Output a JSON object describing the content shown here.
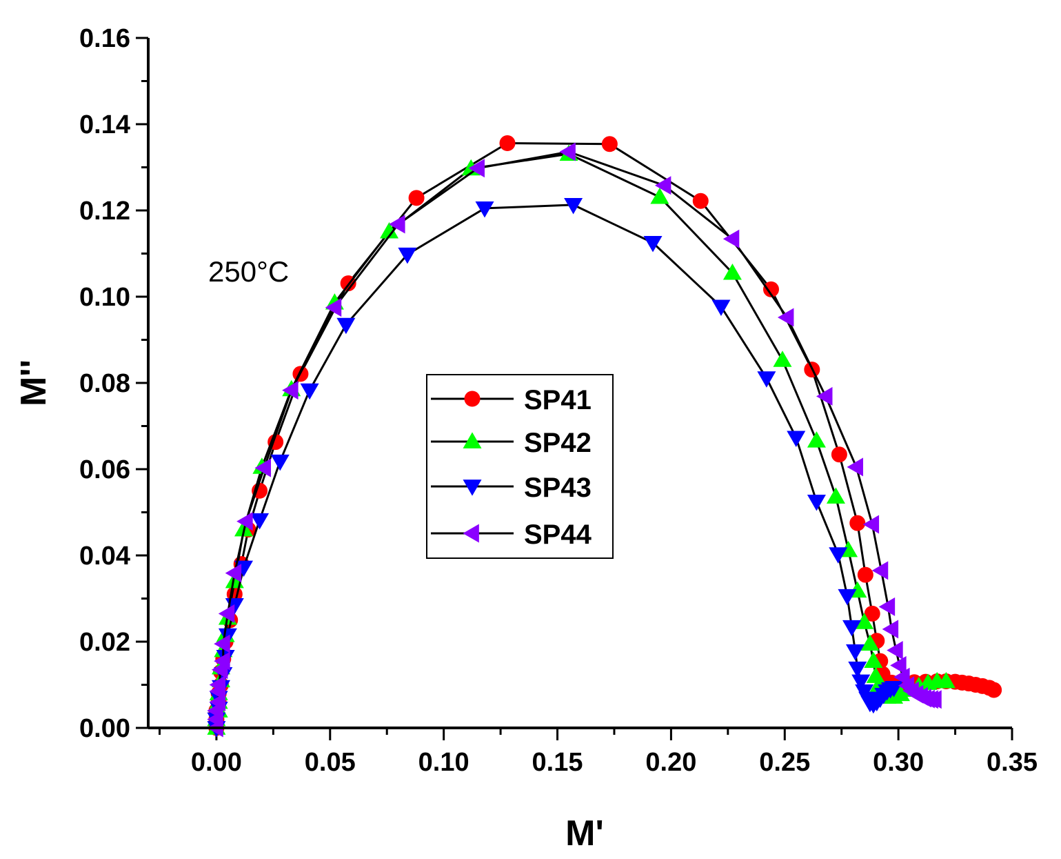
{
  "chart_data": {
    "type": "line",
    "title": "",
    "xlabel": "M'",
    "ylabel": "M''",
    "xlim": [
      -0.03,
      0.35
    ],
    "ylim": [
      0,
      0.16
    ],
    "x_ticks": [
      0.0,
      0.05,
      0.1,
      0.15,
      0.2,
      0.25,
      0.3,
      0.35
    ],
    "x_tick_labels": [
      "0.00",
      "0.05",
      "0.10",
      "0.15",
      "0.20",
      "0.25",
      "0.30",
      "0.35"
    ],
    "y_ticks": [
      0.0,
      0.02,
      0.04,
      0.06,
      0.08,
      0.1,
      0.12,
      0.14,
      0.16
    ],
    "y_tick_labels": [
      "0.00",
      "0.02",
      "0.04",
      "0.06",
      "0.08",
      "0.10",
      "0.12",
      "0.14",
      "0.16"
    ],
    "grid": false,
    "legend_position": "center-left",
    "annotations": [
      {
        "text": "250°C",
        "x": 0.012,
        "y": 0.106
      }
    ],
    "series": [
      {
        "name": "SP41",
        "color": "#ff0000",
        "marker": "circle",
        "points": [
          [
            0.0,
            0.0
          ],
          [
            0.0,
            0.002
          ],
          [
            0.0,
            0.004
          ],
          [
            0.001,
            0.006
          ],
          [
            0.001,
            0.008
          ],
          [
            0.002,
            0.01
          ],
          [
            0.002,
            0.013
          ],
          [
            0.003,
            0.016
          ],
          [
            0.004,
            0.02
          ],
          [
            0.006,
            0.025
          ],
          [
            0.008,
            0.031
          ],
          [
            0.011,
            0.038
          ],
          [
            0.014,
            0.046
          ],
          [
            0.019,
            0.055
          ],
          [
            0.026,
            0.0663
          ],
          [
            0.037,
            0.0821
          ],
          [
            0.058,
            0.1031
          ],
          [
            0.088,
            0.1229
          ],
          [
            0.128,
            0.1356
          ],
          [
            0.173,
            0.1354
          ],
          [
            0.213,
            0.1222
          ],
          [
            0.244,
            0.1017
          ],
          [
            0.262,
            0.0831
          ],
          [
            0.274,
            0.0634
          ],
          [
            0.282,
            0.0475
          ],
          [
            0.2855,
            0.0355
          ],
          [
            0.2885,
            0.0265
          ],
          [
            0.2905,
            0.0202
          ],
          [
            0.292,
            0.0155
          ],
          [
            0.293,
            0.0125
          ],
          [
            0.294,
            0.011
          ],
          [
            0.297,
            0.0105
          ],
          [
            0.302,
            0.0105
          ],
          [
            0.307,
            0.0106
          ],
          [
            0.312,
            0.0107
          ],
          [
            0.317,
            0.0108
          ],
          [
            0.321,
            0.0108
          ],
          [
            0.325,
            0.0107
          ],
          [
            0.328,
            0.0105
          ],
          [
            0.331,
            0.0103
          ],
          [
            0.334,
            0.01
          ],
          [
            0.337,
            0.0097
          ],
          [
            0.34,
            0.0093
          ],
          [
            0.342,
            0.0088
          ]
        ]
      },
      {
        "name": "SP42",
        "color": "#00ff00",
        "marker": "triangle-up",
        "points": [
          [
            0.0,
            0.0
          ],
          [
            0.0,
            0.002
          ],
          [
            0.001,
            0.004
          ],
          [
            0.001,
            0.006
          ],
          [
            0.001,
            0.008
          ],
          [
            0.002,
            0.011
          ],
          [
            0.002,
            0.014
          ],
          [
            0.003,
            0.018
          ],
          [
            0.004,
            0.0215
          ],
          [
            0.005,
            0.0255
          ],
          [
            0.008,
            0.034
          ],
          [
            0.012,
            0.046
          ],
          [
            0.02,
            0.0605
          ],
          [
            0.033,
            0.0785
          ],
          [
            0.052,
            0.0986
          ],
          [
            0.076,
            0.1151
          ],
          [
            0.112,
            0.1297
          ],
          [
            0.155,
            0.1331
          ],
          [
            0.195,
            0.1231
          ],
          [
            0.227,
            0.1055
          ],
          [
            0.249,
            0.0853
          ],
          [
            0.264,
            0.0666
          ],
          [
            0.2725,
            0.0536
          ],
          [
            0.278,
            0.0412
          ],
          [
            0.282,
            0.0318
          ],
          [
            0.285,
            0.0245
          ],
          [
            0.2875,
            0.0195
          ],
          [
            0.289,
            0.0155
          ],
          [
            0.29,
            0.012
          ],
          [
            0.291,
            0.0095
          ],
          [
            0.2925,
            0.008
          ],
          [
            0.295,
            0.0072
          ],
          [
            0.298,
            0.0072
          ],
          [
            0.301,
            0.0078
          ],
          [
            0.305,
            0.0088
          ],
          [
            0.309,
            0.0097
          ],
          [
            0.313,
            0.0104
          ],
          [
            0.317,
            0.0108
          ],
          [
            0.321,
            0.0108
          ]
        ]
      },
      {
        "name": "SP43",
        "color": "#0000ff",
        "marker": "triangle-down",
        "points": [
          [
            0.0,
            0.0
          ],
          [
            0.0,
            0.002
          ],
          [
            0.001,
            0.0045
          ],
          [
            0.001,
            0.007
          ],
          [
            0.002,
            0.0095
          ],
          [
            0.003,
            0.0125
          ],
          [
            0.004,
            0.0165
          ],
          [
            0.005,
            0.0215
          ],
          [
            0.008,
            0.0285
          ],
          [
            0.012,
            0.0372
          ],
          [
            0.019,
            0.0482
          ],
          [
            0.028,
            0.0618
          ],
          [
            0.041,
            0.0783
          ],
          [
            0.057,
            0.0935
          ],
          [
            0.084,
            0.1098
          ],
          [
            0.118,
            0.1205
          ],
          [
            0.157,
            0.1213
          ],
          [
            0.192,
            0.1125
          ],
          [
            0.222,
            0.0977
          ],
          [
            0.242,
            0.0811
          ],
          [
            0.255,
            0.0673
          ],
          [
            0.264,
            0.0525
          ],
          [
            0.2735,
            0.0403
          ],
          [
            0.2775,
            0.0306
          ],
          [
            0.2795,
            0.0234
          ],
          [
            0.281,
            0.0178
          ],
          [
            0.282,
            0.0138
          ],
          [
            0.2835,
            0.0108
          ],
          [
            0.285,
            0.0085
          ],
          [
            0.2865,
            0.0068
          ],
          [
            0.2875,
            0.0058
          ],
          [
            0.289,
            0.0055
          ],
          [
            0.2905,
            0.006
          ],
          [
            0.292,
            0.0068
          ],
          [
            0.2935,
            0.0077
          ],
          [
            0.295,
            0.0085
          ],
          [
            0.2965,
            0.009
          ],
          [
            0.298,
            0.0093
          ]
        ]
      },
      {
        "name": "SP44",
        "color": "#8b00ff",
        "marker": "triangle-left",
        "points": [
          [
            0.0,
            0.0
          ],
          [
            0.0,
            0.002
          ],
          [
            0.0,
            0.004
          ],
          [
            0.001,
            0.006
          ],
          [
            0.001,
            0.0085
          ],
          [
            0.001,
            0.01
          ],
          [
            0.002,
            0.0135
          ],
          [
            0.003,
            0.0155
          ],
          [
            0.003,
            0.0195
          ],
          [
            0.005,
            0.0265
          ],
          [
            0.008,
            0.0359
          ],
          [
            0.013,
            0.0479
          ],
          [
            0.021,
            0.0603
          ],
          [
            0.033,
            0.0783
          ],
          [
            0.052,
            0.0975
          ],
          [
            0.08,
            0.1168
          ],
          [
            0.115,
            0.1298
          ],
          [
            0.155,
            0.1336
          ],
          [
            0.197,
            0.1258
          ],
          [
            0.227,
            0.1134
          ],
          [
            0.251,
            0.0952
          ],
          [
            0.268,
            0.0769
          ],
          [
            0.2815,
            0.0605
          ],
          [
            0.2885,
            0.0472
          ],
          [
            0.2925,
            0.0365
          ],
          [
            0.2955,
            0.0281
          ],
          [
            0.297,
            0.0229
          ],
          [
            0.299,
            0.018
          ],
          [
            0.3005,
            0.0145
          ],
          [
            0.302,
            0.0118
          ],
          [
            0.304,
            0.0098
          ],
          [
            0.306,
            0.0086
          ],
          [
            0.308,
            0.0078
          ],
          [
            0.31,
            0.0073
          ],
          [
            0.3115,
            0.0069
          ],
          [
            0.313,
            0.0067
          ],
          [
            0.3145,
            0.0066
          ],
          [
            0.316,
            0.0066
          ]
        ]
      }
    ]
  }
}
